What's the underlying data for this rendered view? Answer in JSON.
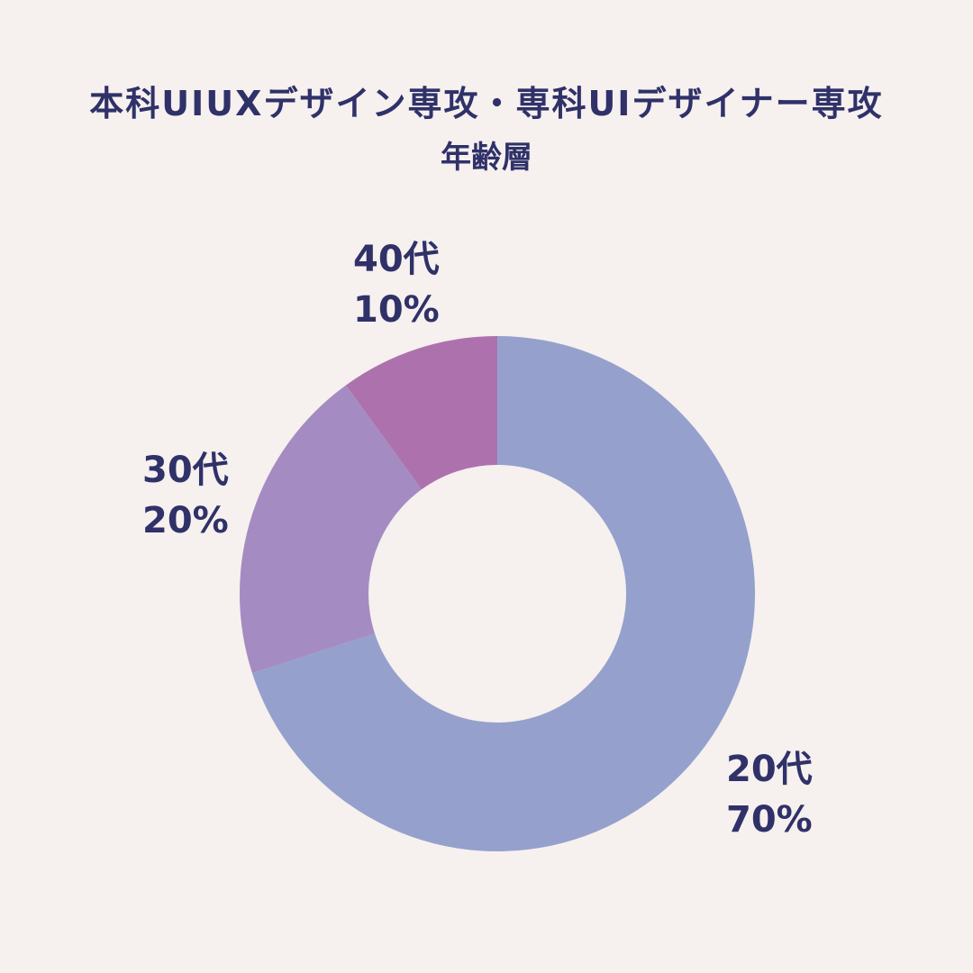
{
  "chart_data": {
    "type": "pie",
    "donut": true,
    "title": "本科UIUXデザイン専攻・専科UIデザイナー専攻",
    "subtitle": "年齢層",
    "slices": [
      {
        "label": "20代",
        "value": 70,
        "value_label": "70%",
        "color": "#95a1cc"
      },
      {
        "label": "30代",
        "value": 20,
        "value_label": "20%",
        "color": "#a48cc2"
      },
      {
        "label": "40代",
        "value": 10,
        "value_label": "10%",
        "color": "#ad72ae"
      }
    ],
    "start": "top",
    "direction": "clockwise",
    "legend": "none"
  }
}
